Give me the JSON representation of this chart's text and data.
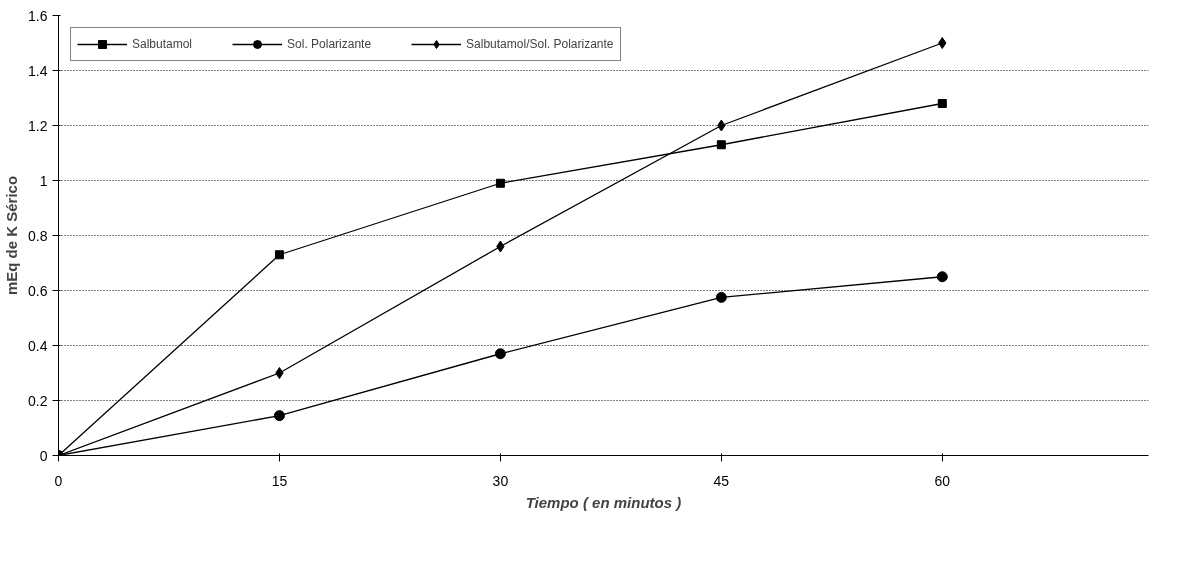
{
  "chart_data": {
    "type": "line",
    "xlabel": "Tiempo ( en minutos )",
    "ylabel": "mEq de K Sérico",
    "x": [
      0,
      15,
      30,
      45,
      60
    ],
    "xlim": [
      0,
      74
    ],
    "xticks": [
      0,
      15,
      30,
      45,
      60
    ],
    "ylim": [
      0,
      1.6
    ],
    "yticks": [
      0,
      0.2,
      0.4,
      0.6,
      0.8,
      1,
      1.2,
      1.4,
      1.6
    ],
    "grid": "y",
    "legend": "top left",
    "line_style": "solid",
    "series": [
      {
        "name": "Salbutamol",
        "color": "#000000",
        "marker": "square",
        "values": [
          0,
          0.73,
          0.99,
          1.13,
          1.28
        ]
      },
      {
        "name": "Sol. Polarizante",
        "color": "#000000",
        "marker": "circle",
        "values": [
          0,
          0.145,
          0.37,
          0.575,
          0.65
        ]
      },
      {
        "name": "Salbutamol/Sol. Polarizante",
        "color": "#000000",
        "marker": "diamond",
        "values": [
          0,
          0.3,
          0.76,
          1.2,
          1.5
        ]
      }
    ]
  }
}
